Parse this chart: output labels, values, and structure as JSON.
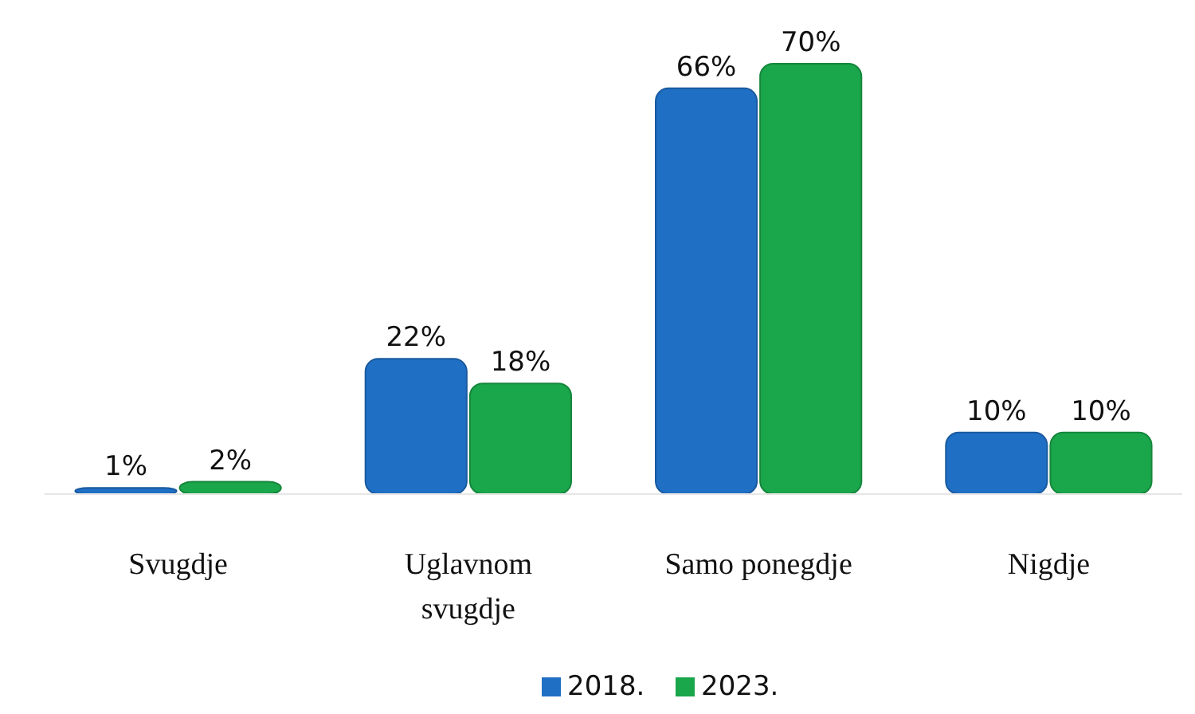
{
  "chart_data": {
    "type": "bar",
    "categories": [
      "Svugdje",
      "Uglavnom svugdje",
      "Samo ponegdje",
      "Nigdje"
    ],
    "series": [
      {
        "name": "2018.",
        "color": "#1f6fc5",
        "values": [
          1,
          22,
          66,
          10
        ],
        "value_labels": [
          "1%",
          "22%",
          "66%",
          "10%"
        ]
      },
      {
        "name": "2023.",
        "color": "#1aa64a",
        "values": [
          2,
          18,
          70,
          10
        ],
        "value_labels": [
          "2%",
          "18%",
          "70%",
          "10%"
        ]
      }
    ],
    "legend": "bottom"
  }
}
